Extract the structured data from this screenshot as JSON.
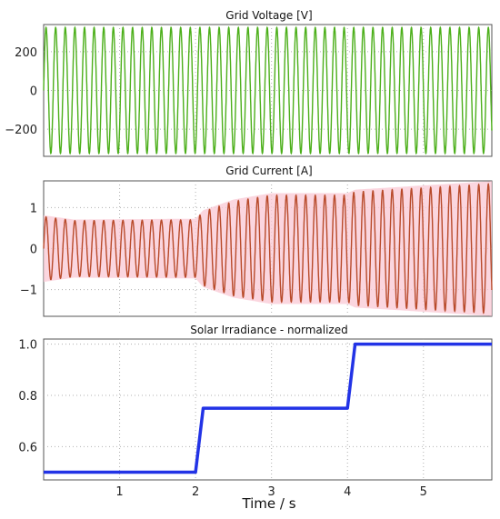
{
  "chart_data": [
    {
      "type": "line",
      "title": "Grid Voltage [V]",
      "xlim": [
        0,
        5.9
      ],
      "ylim": [
        -340,
        340
      ],
      "yticks": [
        -200,
        0,
        200
      ],
      "ytick_labels": [
        "−200",
        "0",
        "200"
      ],
      "grid": true,
      "series": [
        {
          "kind": "sine",
          "frequency_hz": 50,
          "amplitude": [
            [
              0,
              325
            ],
            [
              5.9,
              325
            ]
          ],
          "color": "#4caf1a"
        }
      ]
    },
    {
      "type": "line",
      "title": "Grid Current [A]",
      "xlim": [
        0,
        5.9
      ],
      "ylim": [
        -1.65,
        1.65
      ],
      "yticks": [
        -1,
        0,
        1
      ],
      "ytick_labels": [
        "−1",
        "0",
        "1"
      ],
      "grid": true,
      "series": [
        {
          "kind": "sine",
          "frequency_hz": 50,
          "amplitude": [
            [
              0,
              0.78
            ],
            [
              0.4,
              0.68
            ],
            [
              2.0,
              0.7
            ],
            [
              2.1,
              0.9
            ],
            [
              2.5,
              1.15
            ],
            [
              3.0,
              1.3
            ],
            [
              4.0,
              1.3
            ],
            [
              4.1,
              1.38
            ],
            [
              5.0,
              1.48
            ],
            [
              5.9,
              1.58
            ]
          ],
          "color": "#b84a2a"
        }
      ],
      "band_color": "#f9c8d4"
    },
    {
      "type": "line",
      "title": "Solar Irradiance - normalized",
      "xlabel": "Time / s",
      "xlim": [
        0,
        5.9
      ],
      "ylim": [
        0.47,
        1.02
      ],
      "xticks": [
        1,
        2,
        3,
        4,
        5
      ],
      "xtick_labels": [
        "1",
        "2",
        "3",
        "4",
        "5"
      ],
      "yticks": [
        0.6,
        0.8,
        1.0
      ],
      "ytick_labels": [
        "0.6",
        "0.8",
        "1.0"
      ],
      "grid": true,
      "series": [
        {
          "x": [
            0,
            2.0,
            2.1,
            4.0,
            4.1,
            5.9
          ],
          "y": [
            0.5,
            0.5,
            0.75,
            0.75,
            1.0,
            1.0
          ],
          "color": "#2233e6"
        }
      ]
    }
  ]
}
